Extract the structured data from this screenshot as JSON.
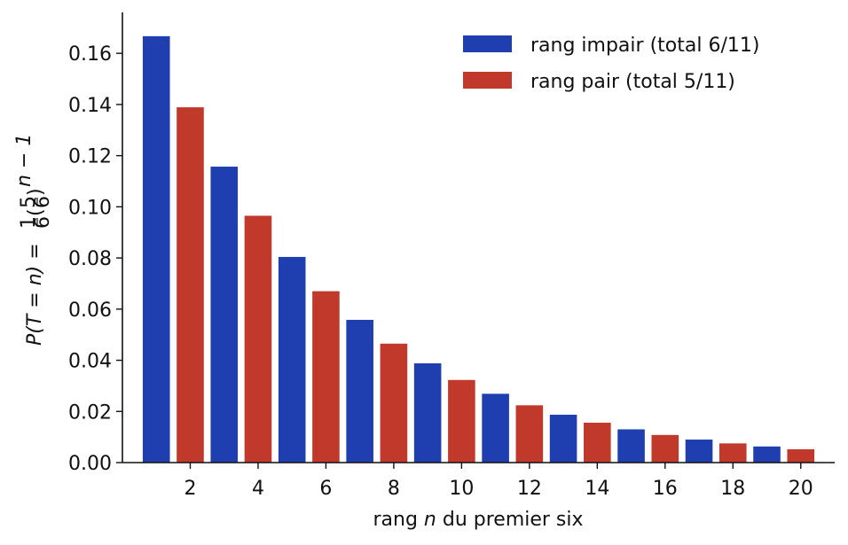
{
  "chart_data": {
    "type": "bar",
    "x": [
      1,
      2,
      3,
      4,
      5,
      6,
      7,
      8,
      9,
      10,
      11,
      12,
      13,
      14,
      15,
      16,
      17,
      18,
      19,
      20
    ],
    "series": [
      {
        "name": "rang impair (total 6/11)",
        "color": "#1f3fb0",
        "x": [
          1,
          3,
          5,
          7,
          9,
          11,
          13,
          15,
          17,
          19
        ],
        "values": [
          0.1667,
          0.1157,
          0.0804,
          0.0558,
          0.0388,
          0.0269,
          0.0187,
          0.013,
          0.009,
          0.0063
        ]
      },
      {
        "name": "rang pair (total 5/11)",
        "color": "#c0392b",
        "x": [
          2,
          4,
          6,
          8,
          10,
          12,
          14,
          16,
          18,
          20
        ],
        "values": [
          0.1389,
          0.0965,
          0.067,
          0.0465,
          0.0323,
          0.0224,
          0.0156,
          0.0108,
          0.0075,
          0.0052
        ]
      }
    ],
    "xticks": [
      "2",
      "4",
      "6",
      "8",
      "10",
      "12",
      "14",
      "16",
      "18",
      "20"
    ],
    "xtick_values": [
      2,
      4,
      6,
      8,
      10,
      12,
      14,
      16,
      18,
      20
    ],
    "yticks": [
      "0.00",
      "0.02",
      "0.04",
      "0.06",
      "0.08",
      "0.10",
      "0.12",
      "0.14",
      "0.16"
    ],
    "ytick_values": [
      0,
      0.02,
      0.04,
      0.06,
      0.08,
      0.1,
      0.12,
      0.14,
      0.16
    ],
    "xlabel_pre": "rang ",
    "xlabel_var": "n",
    "xlabel_post": " du premier six",
    "ylabel_lhs": "P(T = n) = ",
    "ylabel_frac_num": "1",
    "ylabel_frac_den": "6",
    "ylabel_paren_num": "5",
    "ylabel_paren_den": "6",
    "ylabel_exp": "n − 1",
    "xlim": [
      0.0,
      21.0
    ],
    "ylim": [
      0,
      0.176
    ],
    "legend_position": "top-right",
    "grid": false
  }
}
